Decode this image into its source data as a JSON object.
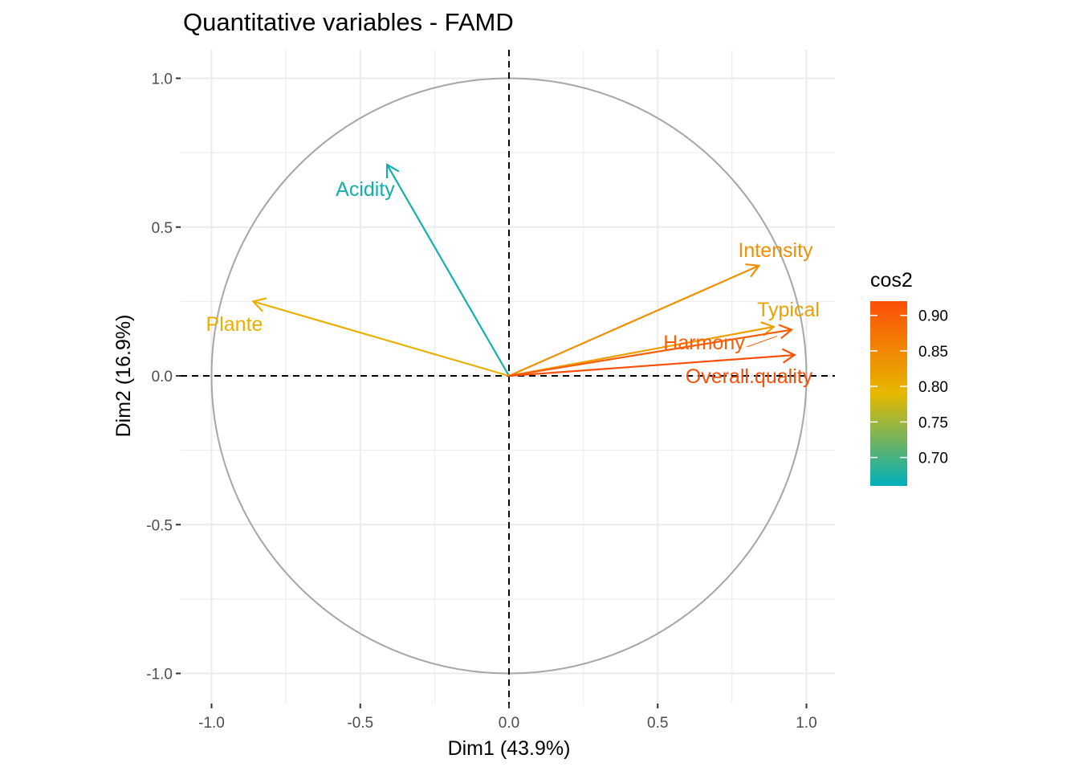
{
  "chart_data": {
    "type": "scatter",
    "subtype": "pca-variable-correlation-circle",
    "title": "Quantitative variables - FAMD",
    "xlabel": "Dim1 (43.9%)",
    "ylabel": "Dim2 (16.9%)",
    "xlim": [
      -1.05,
      1.1
    ],
    "ylim": [
      -1.1,
      1.1
    ],
    "x_ticks": [
      -1.0,
      -0.5,
      0.0,
      0.5,
      1.0
    ],
    "x_tick_labels": [
      "-1.0",
      "-0.5",
      "0.0",
      "0.5",
      "1.0"
    ],
    "y_ticks": [
      -1.0,
      -0.5,
      0.0,
      0.5,
      1.0
    ],
    "y_tick_labels": [
      "-1.0",
      "-0.5",
      "0.0",
      "0.5",
      "1.0"
    ],
    "grid": true,
    "unit_circle": true,
    "reference_lines": {
      "x": 0,
      "y": 0,
      "style": "dashed"
    },
    "variables": [
      {
        "name": "Acidity",
        "x": -0.41,
        "y": 0.71,
        "cos2": 0.67
      },
      {
        "name": "Plante",
        "x": -0.86,
        "y": 0.25,
        "cos2": 0.8
      },
      {
        "name": "Intensity",
        "x": 0.84,
        "y": 0.37,
        "cos2": 0.84
      },
      {
        "name": "Typical",
        "x": 0.89,
        "y": 0.165,
        "cos2": 0.82
      },
      {
        "name": "Harmony",
        "x": 0.95,
        "y": 0.155,
        "cos2": 0.9
      },
      {
        "name": "Overall.quality",
        "x": 0.96,
        "y": 0.07,
        "cos2": 0.92
      }
    ],
    "legend": {
      "title": "cos2",
      "position": "right",
      "min": 0.66,
      "max": 0.92,
      "ticks": [
        0.7,
        0.75,
        0.8,
        0.85,
        0.9
      ],
      "tick_labels": [
        "0.70",
        "0.75",
        "0.80",
        "0.85",
        "0.90"
      ],
      "gradient_colors": [
        "#00AFBB",
        "#E7B800",
        "#FC4E07"
      ]
    },
    "colors": {
      "grid": "#ebebeb",
      "circle": "#a6a6a6",
      "reference": "#000000"
    }
  }
}
